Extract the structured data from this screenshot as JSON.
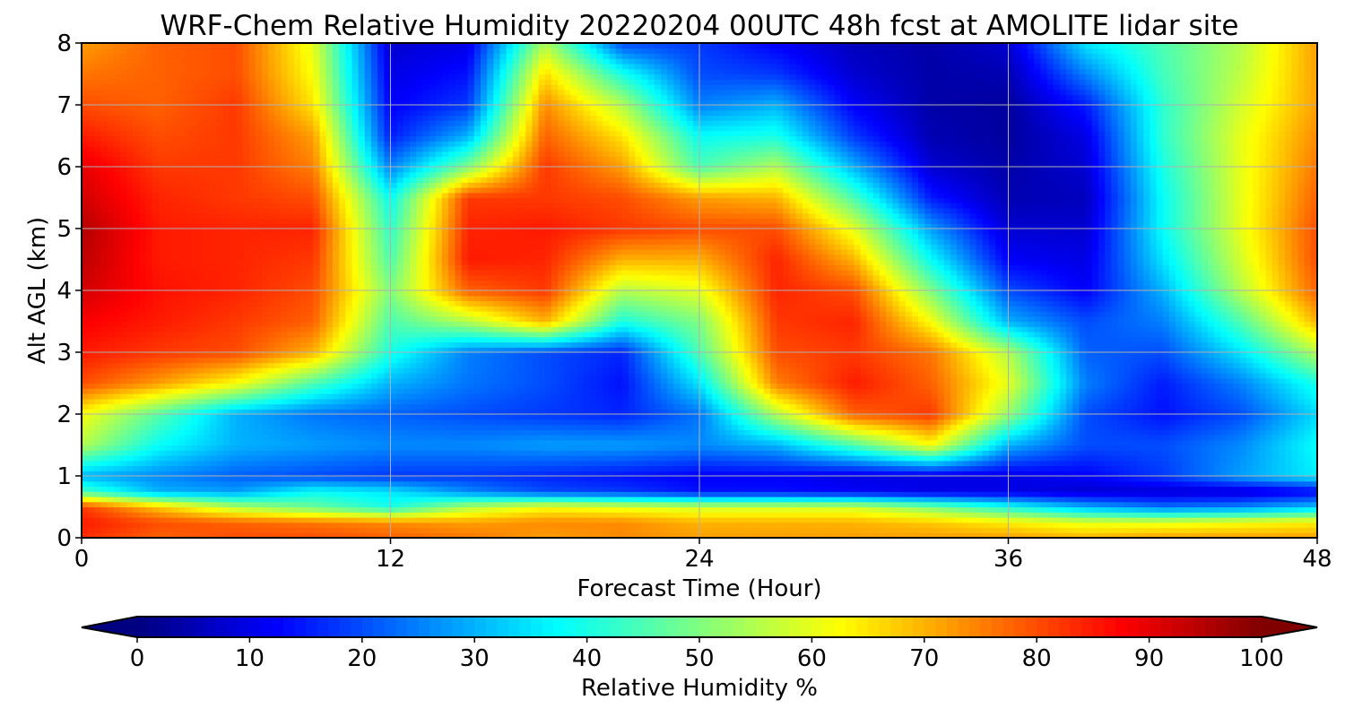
{
  "chart_data": {
    "type": "heatmap",
    "title": "WRF-Chem Relative Humidity 20220204 00UTC 48h fcst at AMOLITE lidar site",
    "xlabel": "Forecast Time (Hour)",
    "ylabel": "Alt AGL (km)",
    "xlim": [
      0,
      48
    ],
    "ylim": [
      0,
      8
    ],
    "x_ticks": [
      "0",
      "12",
      "24",
      "36",
      "48"
    ],
    "y_ticks": [
      "0",
      "1",
      "2",
      "3",
      "4",
      "5",
      "6",
      "7",
      "8"
    ],
    "grid": true,
    "colormap": "jet",
    "colorbar": {
      "label": "Relative Humidity %",
      "range": [
        0,
        100
      ],
      "ticks": [
        "0",
        "10",
        "20",
        "30",
        "40",
        "50",
        "60",
        "70",
        "80",
        "90",
        "100"
      ],
      "placement": "bottom",
      "extend": "both"
    },
    "x": [
      0,
      3,
      6,
      9,
      12,
      15,
      18,
      21,
      24,
      27,
      30,
      33,
      36,
      39,
      42,
      45,
      48
    ],
    "y": [
      0,
      0.25,
      0.5,
      0.75,
      1,
      1.5,
      2,
      2.5,
      3,
      3.5,
      4,
      4.5,
      5,
      5.5,
      6,
      6.5,
      7,
      7.5,
      8
    ],
    "z": [
      [
        83,
        78,
        80,
        80,
        78,
        76,
        72,
        74,
        72,
        72,
        72,
        72,
        72,
        70,
        72,
        72,
        72
      ],
      [
        85,
        80,
        78,
        76,
        74,
        72,
        74,
        74,
        70,
        70,
        70,
        68,
        64,
        60,
        60,
        62,
        64
      ],
      [
        82,
        68,
        55,
        48,
        40,
        55,
        62,
        60,
        58,
        58,
        58,
        50,
        40,
        30,
        24,
        26,
        32
      ],
      [
        45,
        30,
        28,
        38,
        35,
        26,
        20,
        18,
        14,
        14,
        12,
        10,
        10,
        8,
        8,
        8,
        12
      ],
      [
        30,
        26,
        22,
        20,
        18,
        18,
        16,
        14,
        12,
        12,
        10,
        10,
        10,
        12,
        18,
        28,
        36
      ],
      [
        55,
        38,
        30,
        28,
        26,
        26,
        28,
        28,
        26,
        30,
        45,
        62,
        30,
        20,
        20,
        26,
        38
      ],
      [
        62,
        46,
        30,
        24,
        22,
        20,
        18,
        16,
        24,
        55,
        78,
        82,
        52,
        20,
        14,
        20,
        34
      ],
      [
        80,
        72,
        62,
        45,
        30,
        24,
        20,
        14,
        35,
        75,
        85,
        78,
        60,
        25,
        15,
        25,
        40
      ],
      [
        85,
        82,
        80,
        70,
        40,
        25,
        20,
        16,
        45,
        80,
        82,
        76,
        55,
        22,
        20,
        35,
        55
      ],
      [
        88,
        85,
        82,
        78,
        45,
        55,
        70,
        40,
        50,
        82,
        84,
        62,
        30,
        20,
        25,
        45,
        70
      ],
      [
        92,
        86,
        84,
        80,
        50,
        78,
        82,
        55,
        60,
        84,
        80,
        50,
        20,
        12,
        30,
        55,
        78
      ],
      [
        94,
        85,
        84,
        82,
        45,
        85,
        84,
        70,
        70,
        84,
        70,
        38,
        12,
        10,
        35,
        58,
        80
      ],
      [
        95,
        85,
        84,
        84,
        42,
        84,
        85,
        82,
        80,
        80,
        60,
        28,
        8,
        8,
        38,
        60,
        80
      ],
      [
        92,
        84,
        82,
        80,
        38,
        82,
        82,
        80,
        72,
        70,
        45,
        15,
        5,
        6,
        38,
        60,
        78
      ],
      [
        90,
        82,
        82,
        75,
        25,
        50,
        82,
        72,
        45,
        55,
        30,
        8,
        4,
        8,
        40,
        60,
        76
      ],
      [
        85,
        80,
        82,
        72,
        15,
        30,
        78,
        65,
        38,
        40,
        18,
        5,
        3,
        10,
        42,
        60,
        74
      ],
      [
        80,
        78,
        82,
        65,
        12,
        18,
        74,
        55,
        25,
        30,
        12,
        4,
        3,
        15,
        42,
        58,
        72
      ],
      [
        76,
        78,
        80,
        62,
        10,
        14,
        66,
        40,
        20,
        18,
        8,
        4,
        5,
        25,
        44,
        56,
        72
      ],
      [
        72,
        78,
        80,
        60,
        8,
        10,
        55,
        20,
        18,
        12,
        6,
        4,
        8,
        35,
        45,
        55,
        72
      ]
    ]
  }
}
